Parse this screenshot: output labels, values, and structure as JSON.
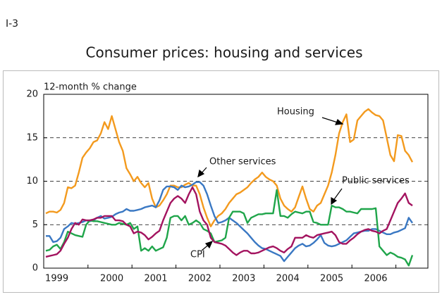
{
  "figure_label": "I-3",
  "chart_data": {
    "type": "line",
    "title": "Consumer prices: housing and services",
    "y_label": "12-month % change",
    "categories": [
      null,
      null,
      null,
      "1999",
      null,
      null,
      null,
      null,
      null,
      null,
      null,
      null,
      null,
      null,
      null,
      null,
      null,
      null,
      "2000",
      null,
      null,
      null,
      null,
      null,
      null,
      null,
      null,
      null,
      null,
      null,
      "2001",
      null,
      null,
      null,
      null,
      null,
      null,
      null,
      null,
      null,
      null,
      null,
      "2002",
      null,
      null,
      null,
      null,
      null,
      null,
      null,
      null,
      null,
      null,
      null,
      "2003",
      null,
      null,
      null,
      null,
      null,
      null,
      null,
      null,
      null,
      null,
      null,
      "2004",
      null,
      null,
      null,
      null,
      null,
      null,
      null,
      null,
      null,
      null,
      null,
      "2005",
      null,
      null,
      null,
      null,
      null,
      null,
      null,
      null,
      null,
      null,
      null,
      "2006",
      null,
      null,
      null,
      null,
      null,
      null,
      null,
      null,
      null,
      null
    ],
    "ylim": [
      0,
      20
    ],
    "yticks": [
      0,
      5,
      10,
      15,
      20
    ],
    "grid": true,
    "series": [
      {
        "name": "Housing",
        "color": "#f39a1e",
        "values": [
          6.3,
          6.5,
          6.5,
          6.4,
          6.7,
          7.5,
          9.3,
          9.2,
          9.5,
          11.0,
          12.7,
          13.3,
          13.8,
          14.5,
          14.7,
          15.5,
          16.8,
          16.0,
          17.5,
          16.0,
          14.5,
          13.5,
          11.5,
          10.8,
          10.0,
          10.5,
          9.8,
          9.3,
          9.8,
          8.0,
          7.0,
          7.2,
          7.8,
          8.5,
          9.5,
          9.5,
          9.3,
          9.3,
          9.6,
          9.8,
          9.5,
          9.5,
          8.5,
          7.0,
          5.8,
          4.8,
          5.5,
          6.0,
          6.3,
          6.8,
          7.5,
          8.0,
          8.5,
          8.7,
          9.0,
          9.3,
          9.8,
          10.2,
          10.5,
          11.0,
          10.5,
          10.2,
          10.0,
          9.5,
          8.0,
          7.2,
          6.8,
          6.5,
          7.0,
          8.2,
          9.4,
          8.0,
          6.8,
          6.5,
          7.2,
          7.5,
          8.5,
          9.5,
          11.0,
          13.0,
          15.5,
          16.8,
          17.7,
          14.5,
          14.8,
          17.0,
          17.5,
          18.0,
          18.3,
          17.9,
          17.6,
          17.5,
          17.0,
          15.0,
          13.0,
          12.3,
          15.3,
          15.2,
          13.5,
          13.0,
          12.2
        ]
      },
      {
        "name": "Other services",
        "color": "#3a78c3",
        "values": [
          3.7,
          3.7,
          3.0,
          3.1,
          3.5,
          4.5,
          4.8,
          5.2,
          5.1,
          5.2,
          5.3,
          5.5,
          5.4,
          5.5,
          5.8,
          6.0,
          5.7,
          5.8,
          5.9,
          6.2,
          6.4,
          6.5,
          6.8,
          6.6,
          6.6,
          6.7,
          6.8,
          7.0,
          7.1,
          7.2,
          7.0,
          7.8,
          9.0,
          9.4,
          9.4,
          9.3,
          9.0,
          9.5,
          9.3,
          9.4,
          9.6,
          9.9,
          9.9,
          9.5,
          8.5,
          7.2,
          6.0,
          5.2,
          5.3,
          5.5,
          5.8,
          5.5,
          5.2,
          4.8,
          4.4,
          4.0,
          3.5,
          3.0,
          2.6,
          2.3,
          2.2,
          2.0,
          1.8,
          1.6,
          1.4,
          0.8,
          1.3,
          1.8,
          2.3,
          2.6,
          2.8,
          2.5,
          2.6,
          2.9,
          3.3,
          3.8,
          2.9,
          2.6,
          2.5,
          2.6,
          2.8,
          3.0,
          3.2,
          3.6,
          4.0,
          4.1,
          4.2,
          4.3,
          4.3,
          4.5,
          4.5,
          4.3,
          4.1,
          3.9,
          3.9,
          4.1,
          4.2,
          4.4,
          4.6,
          5.8,
          5.2
        ]
      },
      {
        "name": "Public services",
        "color": "#1fa54a",
        "values": [
          2.0,
          2.1,
          2.5,
          2.7,
          2.2,
          3.0,
          4.2,
          4.0,
          3.8,
          3.7,
          3.6,
          5.0,
          5.5,
          5.4,
          5.4,
          5.3,
          5.2,
          5.1,
          5.0,
          5.0,
          5.2,
          5.1,
          5.0,
          5.2,
          4.5,
          4.8,
          2.0,
          2.3,
          2.0,
          2.5,
          2.0,
          2.2,
          2.4,
          3.5,
          5.8,
          6.0,
          6.0,
          5.5,
          6.0,
          5.0,
          5.2,
          5.5,
          5.2,
          4.5,
          4.3,
          4.0,
          3.0,
          3.1,
          3.2,
          3.5,
          5.8,
          6.5,
          6.5,
          6.5,
          6.3,
          5.2,
          5.8,
          6.0,
          6.2,
          6.2,
          6.3,
          6.3,
          6.3,
          9.0,
          6.0,
          6.0,
          5.8,
          6.2,
          6.5,
          6.4,
          6.3,
          6.5,
          6.5,
          5.3,
          5.2,
          5.0,
          5.0,
          5.0,
          7.2,
          7.0,
          7.0,
          6.8,
          6.5,
          6.5,
          6.4,
          6.3,
          6.8,
          6.8,
          6.8,
          6.8,
          6.9,
          2.5,
          2.0,
          1.5,
          1.8,
          1.6,
          1.3,
          1.2,
          1.0,
          0.3,
          1.5
        ]
      },
      {
        "name": "CPI",
        "color": "#a3135f",
        "values": [
          1.3,
          1.4,
          1.5,
          1.6,
          2.0,
          2.8,
          3.5,
          4.5,
          5.2,
          5.0,
          5.6,
          5.5,
          5.5,
          5.6,
          5.8,
          5.8,
          6.0,
          6.0,
          6.0,
          5.5,
          5.5,
          5.4,
          5.0,
          4.8,
          4.0,
          4.2,
          4.1,
          3.8,
          3.3,
          3.6,
          4.0,
          4.3,
          5.5,
          6.5,
          7.5,
          8.0,
          8.3,
          8.0,
          7.5,
          8.5,
          9.3,
          8.5,
          6.5,
          5.5,
          5.0,
          3.5,
          3.0,
          2.9,
          2.8,
          2.6,
          2.2,
          1.8,
          1.5,
          1.8,
          2.0,
          2.0,
          1.7,
          1.7,
          1.8,
          2.0,
          2.2,
          2.4,
          2.5,
          2.3,
          2.0,
          1.8,
          2.2,
          2.5,
          3.5,
          3.5,
          3.5,
          3.8,
          3.6,
          3.5,
          3.8,
          3.9,
          4.0,
          4.1,
          4.2,
          3.8,
          3.0,
          2.8,
          2.8,
          3.2,
          3.5,
          3.9,
          4.2,
          4.4,
          4.5,
          4.3,
          4.2,
          4.0,
          4.3,
          4.5,
          5.5,
          6.5,
          7.5,
          8.0,
          8.6,
          7.5,
          7.2
        ]
      }
    ]
  }
}
